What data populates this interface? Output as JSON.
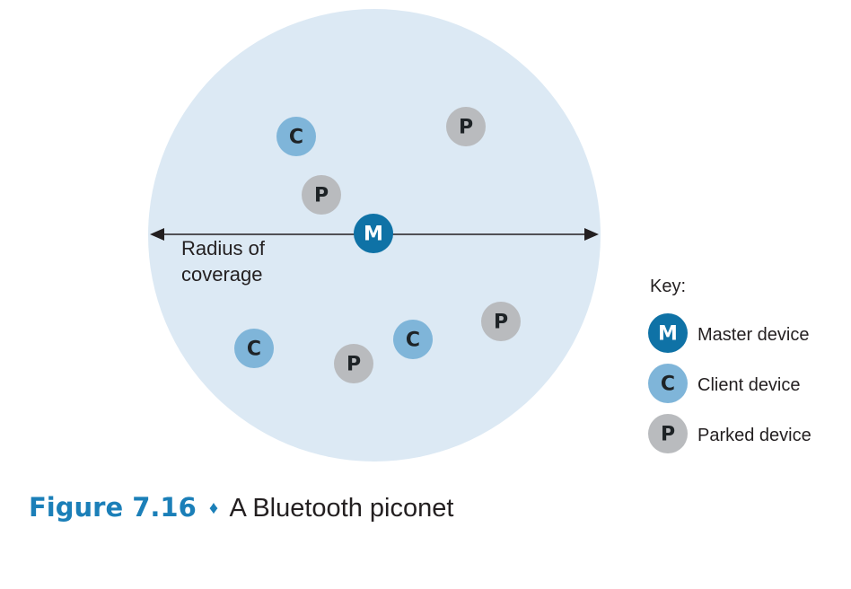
{
  "diagram": {
    "radius_label_line1": "Radius of",
    "radius_label_line2": "coverage",
    "nodes": [
      {
        "type": "C",
        "label": "C"
      },
      {
        "type": "P",
        "label": "P"
      },
      {
        "type": "P",
        "label": "P"
      },
      {
        "type": "M",
        "label": "M"
      },
      {
        "type": "P",
        "label": "P"
      },
      {
        "type": "C",
        "label": "C"
      },
      {
        "type": "C",
        "label": "C"
      },
      {
        "type": "P",
        "label": "P"
      }
    ],
    "colors": {
      "coverage_fill": "#dce9f4",
      "master": "#0f72a6",
      "client": "#7fb5d9",
      "parked": "#b9bbbe",
      "arrow": "#231f20"
    }
  },
  "key": {
    "title": "Key:",
    "items": [
      {
        "symbol": "M",
        "label": "Master device"
      },
      {
        "symbol": "C",
        "label": "Client device"
      },
      {
        "symbol": "P",
        "label": "Parked device"
      }
    ]
  },
  "caption": {
    "figure": "Figure 7.16",
    "separator": "♦",
    "title": "A Bluetooth piconet"
  }
}
